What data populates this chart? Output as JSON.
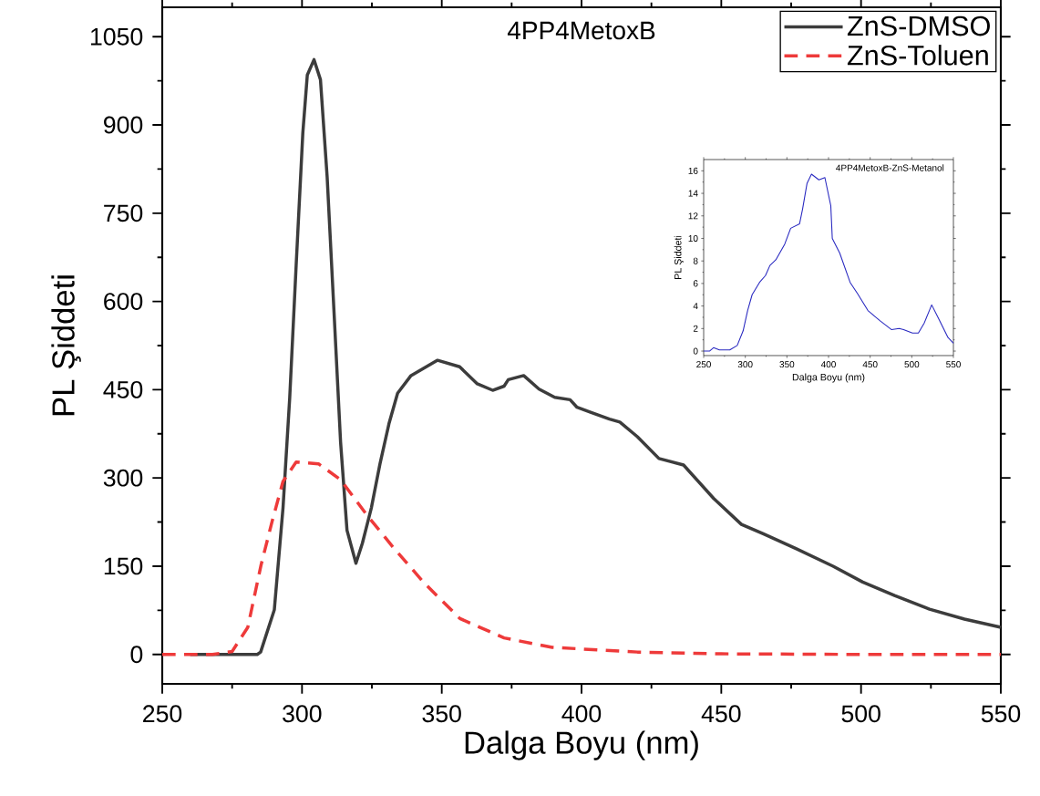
{
  "chart_data": [
    {
      "type": "line",
      "xlabel": "Dalga Boyu (nm)",
      "ylabel": "PL Şiddeti",
      "annotations": [
        "4PP4MetoxB"
      ],
      "xlim": [
        250,
        550
      ],
      "ylim": [
        -50,
        1100
      ],
      "xticks": [
        250,
        300,
        350,
        400,
        450,
        500,
        550
      ],
      "yticks": [
        0,
        150,
        300,
        450,
        600,
        750,
        900,
        1050
      ],
      "legend": "top right",
      "grid": false,
      "series": [
        {
          "name": "ZnS-DMSO",
          "color": "#3c3c3c",
          "line_style": "solid",
          "x": [
            260,
            284,
            285.2,
            290.1,
            293.2,
            295.6,
            297.9,
            300.3,
            301.9,
            304.3,
            306.6,
            309,
            311.4,
            313.8,
            316.1,
            319.3,
            321.6,
            324.8,
            327.9,
            331.1,
            334.2,
            339,
            348.5,
            356.4,
            362.7,
            368.2,
            372.3,
            373.8,
            379.3,
            384.8,
            390.4,
            395.9,
            398.4,
            403,
            410,
            413.7,
            420,
            427.7,
            436.5,
            447.3,
            457.2,
            465,
            476.7,
            490,
            500.6,
            512,
            524.5,
            537,
            550
          ],
          "values": [
            0,
            0,
            4,
            76,
            249,
            436,
            661,
            887,
            985,
            1011,
            977,
            811,
            587,
            361,
            211,
            155,
            189,
            249,
            324,
            392,
            444,
            474,
            500,
            489,
            460,
            449,
            456,
            467,
            474,
            451,
            437,
            433,
            420,
            412,
            400,
            395,
            370,
            333,
            322,
            265,
            221,
            205,
            180,
            150,
            123,
            100,
            77,
            60,
            46
          ]
        },
        {
          "name": "ZnS-Toluen",
          "color": "#ee3a3a",
          "line_style": "dashed",
          "x": [
            250,
            268,
            275,
            280.6,
            285.3,
            289.3,
            293.2,
            297.9,
            305.9,
            313.8,
            323.2,
            332.8,
            343.8,
            356.5,
            372.3,
            389.5,
            420,
            450,
            500,
            550
          ],
          "values": [
            0,
            0,
            5,
            46,
            151,
            226,
            294,
            327,
            324,
            297,
            237,
            181,
            121,
            61,
            28,
            12,
            4,
            1,
            0,
            0
          ]
        }
      ]
    },
    {
      "type": "line",
      "title": "4PP4MetoxB-ZnS-Metanol",
      "xlabel": "Dalga Boyu (nm)",
      "ylabel": "PL Şiddeti",
      "xlim": [
        250,
        550
      ],
      "ylim": [
        -0.4,
        17
      ],
      "xticks": [
        250,
        300,
        350,
        400,
        450,
        500,
        550
      ],
      "yticks": [
        0,
        2,
        4,
        6,
        8,
        10,
        12,
        14,
        16
      ],
      "grid": false,
      "series": [
        {
          "color": "#2828c0",
          "line_style": "solid",
          "x": [
            250,
            257,
            261.8,
            268.9,
            281.4,
            290.3,
            297.4,
            302.8,
            308.2,
            317.1,
            324.2,
            329.6,
            336.7,
            347.4,
            354.5,
            365.2,
            368.8,
            374.2,
            379.5,
            388.4,
            395.6,
            402.7,
            404.5,
            413.4,
            425.9,
            434.8,
            447.3,
            461.6,
            475.8,
            484.8,
            490.1,
            500.8,
            507.9,
            515,
            523.9,
            532.8,
            543.5,
            550
          ],
          "values": [
            0,
            0,
            0.3,
            0.1,
            0.1,
            0.5,
            1.8,
            3.6,
            5.0,
            6.1,
            6.7,
            7.6,
            8.1,
            9.5,
            10.9,
            11.3,
            12.6,
            14.9,
            15.7,
            15.2,
            15.4,
            12.9,
            10.0,
            8.7,
            6.1,
            5.1,
            3.6,
            2.7,
            1.9,
            2.0,
            1.9,
            1.6,
            1.6,
            2.5,
            4.1,
            2.8,
            1.2,
            0.7
          ]
        }
      ]
    }
  ]
}
